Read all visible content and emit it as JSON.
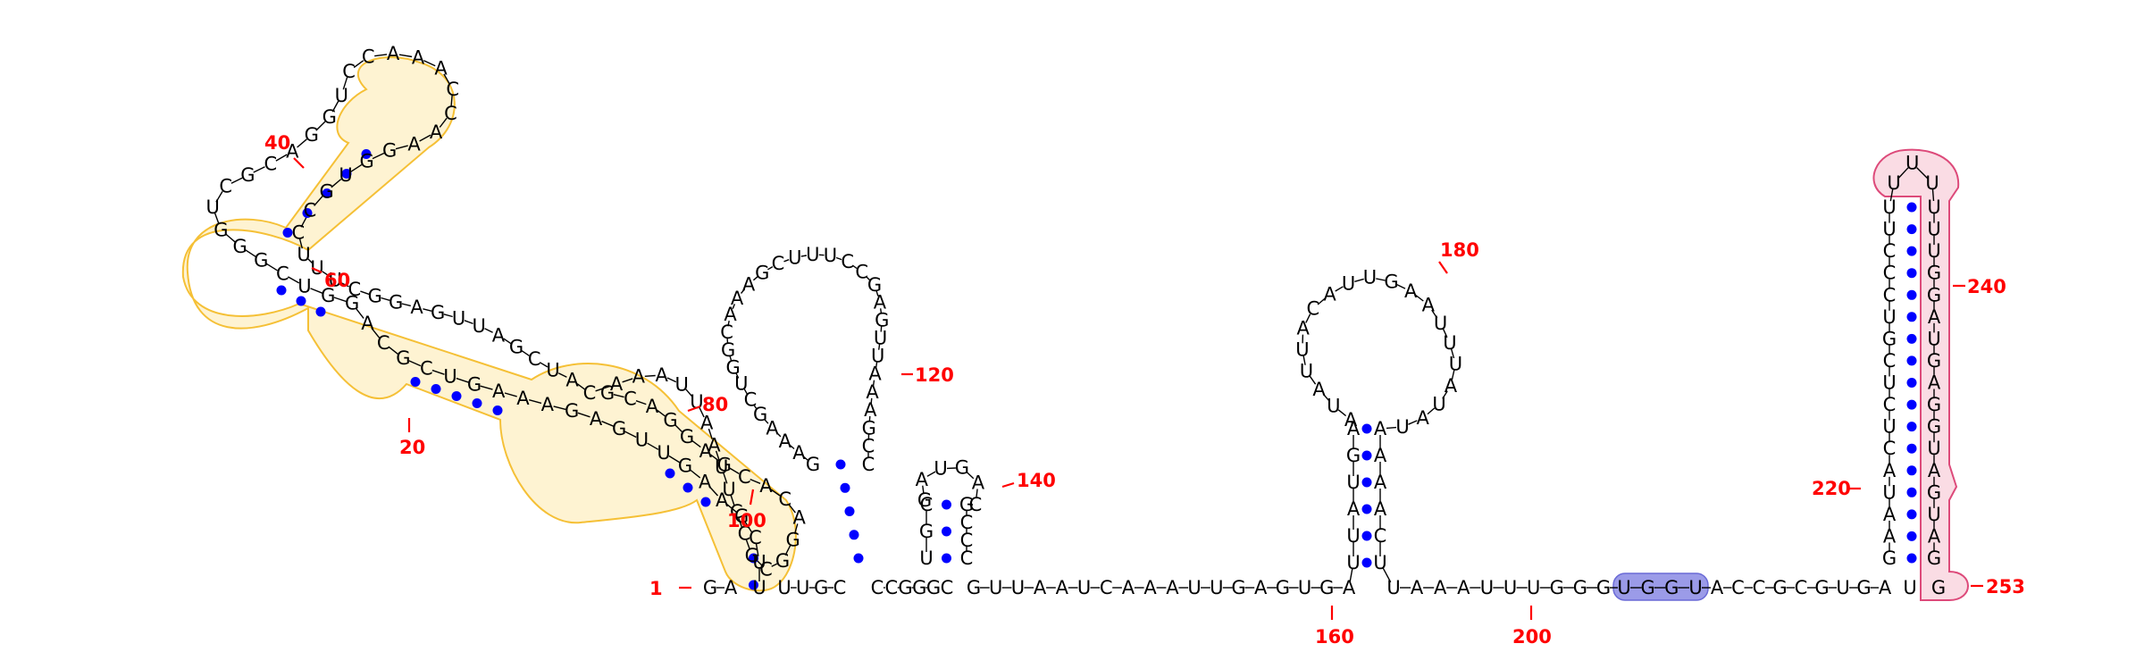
{
  "colors": {
    "background": "#ffffff",
    "nucleotide_text": "#000000",
    "base_pair_dot": "#0000ff",
    "position_label": "#ff0000",
    "domain_yellow_fill": "#fde9ad",
    "domain_yellow_stroke": "#f5c036",
    "domain_pink_fill": "#f7c9d6",
    "domain_pink_stroke": "#dd4a7a",
    "motif_blue_fill": "#9b9be8",
    "motif_blue_stroke": "#6a6ad6"
  },
  "position_labels": [
    "1",
    "20",
    "40",
    "60",
    "80",
    "100",
    "120",
    "140",
    "160",
    "180",
    "200",
    "220",
    "240",
    "253"
  ],
  "segments": {
    "5prime": "GA",
    "yellow_1": "UUCGAAGUUGAGAAAGUCGCAGGUCGGGUCGCAGGUCCAAACCAAGGUGCCU",
    "yellow_2": "UUCGGAGUUAGCUAC",
    "yellow_3": "AAAUUAAUUCCGCGGACACGAGGACG",
    "stem_a_5p": "UUGC",
    "stem_a_3p": "CCGGG",
    "loop_a": "GAAAGCUGGCAAAGCUUUCCGAGUUAAAGCC",
    "stem_b_5p": "CUGC",
    "loop_b": "GAUGAC",
    "stem_b_3p": "GCCC",
    "linker_1": "GUUAAUCAAAUUGAGUGA",
    "stem_c_5p": "UUAUGA",
    "loop_c": "AUAUUACAUUGAAUUUAUAU",
    "stem_c_3p": "AAAACU",
    "linker_2": "UAAAUUUGGG",
    "motif_blue": "UGGU",
    "linker_3": "ACCGCGUGA",
    "stem_d_5p": "GAAUACUCUCGUCCCUU",
    "stem_d_3p": "UUUGGAUGAGGUAGUAG",
    "3prime": "UG"
  }
}
